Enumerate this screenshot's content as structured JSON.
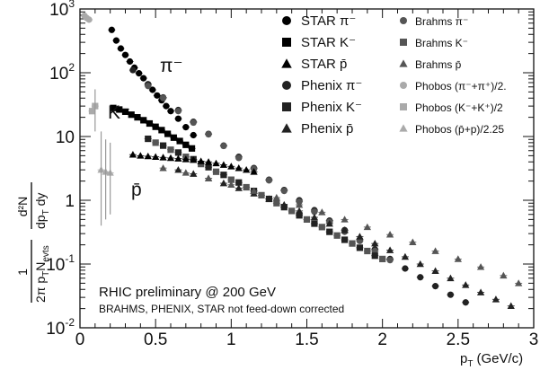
{
  "chart_data": {
    "type": "scatter",
    "xlabel_main": "p",
    "xlabel_sub": "T",
    "xlabel_unit": "(GeV/c)",
    "xlim": [
      0,
      3
    ],
    "ylim": [
      0.01,
      1000
    ],
    "yscale": "log",
    "ylabel_parts": {
      "frac1_num": "1",
      "frac1_den_a": "2π p",
      "frac1_den_sub_a": "T",
      "frac1_den_b": "N",
      "frac1_den_sub_b": "evts",
      "frac2_num": "d²N",
      "frac2_den_a": "dp",
      "frac2_den_sub_a": "T",
      "frac2_den_b": " dy"
    },
    "x_ticks": [
      "0",
      "0.5",
      "1",
      "1.5",
      "2",
      "2.5",
      "3"
    ],
    "x_tick_values": [
      0,
      0.5,
      1,
      1.5,
      2,
      2.5,
      3
    ],
    "y_ticks": [
      {
        "value": 1000,
        "base": "10",
        "exp": "3"
      },
      {
        "value": 100,
        "base": "10",
        "exp": "2"
      },
      {
        "value": 10,
        "base": "10",
        "exp": ""
      },
      {
        "value": 1,
        "base": "1",
        "exp": ""
      },
      {
        "value": 0.1,
        "base": "10",
        "exp": "-1"
      },
      {
        "value": 0.01,
        "base": "10",
        "exp": "-2"
      }
    ],
    "annotations": {
      "pi_label": "π⁻",
      "k_label": "K⁻",
      "pbar_label": "p̄",
      "line1": "RHIC preliminary @ 200 GeV",
      "line2": "BRAHMS, PHENIX, STAR not feed-down corrected"
    },
    "legend": [
      {
        "label": "STAR π⁻",
        "color": "#000000",
        "marker": "circle",
        "size": "large"
      },
      {
        "label": "STAR K⁻",
        "color": "#000000",
        "marker": "square",
        "size": "large"
      },
      {
        "label": "STAR p̄",
        "color": "#000000",
        "marker": "triangle",
        "size": "large"
      },
      {
        "label": "Phenix π⁻",
        "color": "#222222",
        "marker": "circle",
        "size": "large"
      },
      {
        "label": "Phenix K⁻",
        "color": "#222222",
        "marker": "square",
        "size": "large"
      },
      {
        "label": "Phenix p̄",
        "color": "#222222",
        "marker": "triangle",
        "size": "large"
      },
      {
        "label": "Brahms π⁻",
        "color": "#555555",
        "marker": "circle",
        "size": "small"
      },
      {
        "label": "Brahms K⁻",
        "color": "#555555",
        "marker": "square",
        "size": "small"
      },
      {
        "label": "Brahms p̄",
        "color": "#555555",
        "marker": "triangle",
        "size": "small"
      },
      {
        "label": "Phobos (π⁻+π⁺)/2.",
        "color": "#aaaaaa",
        "marker": "circle",
        "size": "small"
      },
      {
        "label": "Phobos (K⁻+K⁺)/2",
        "color": "#aaaaaa",
        "marker": "square",
        "size": "small"
      },
      {
        "label": "Phobos (p̄+p)/2.25",
        "color": "#aaaaaa",
        "marker": "triangle",
        "size": "small"
      }
    ],
    "series": [
      {
        "name": "STAR π⁻",
        "color": "#000000",
        "marker": "circle",
        "x": [
          0.21,
          0.24,
          0.27,
          0.3,
          0.33,
          0.36,
          0.39,
          0.42,
          0.45,
          0.48,
          0.51,
          0.54,
          0.57,
          0.6,
          0.65,
          0.7,
          0.75
        ],
        "y": [
          470,
          320,
          240,
          190,
          150,
          120,
          98,
          82,
          66,
          54,
          44,
          37,
          30,
          25,
          19,
          14,
          10.5
        ]
      },
      {
        "name": "Phenix π⁻",
        "color": "#222222",
        "marker": "circle",
        "x": [
          0.35,
          0.45,
          0.55,
          0.65,
          0.75,
          0.85,
          0.95,
          1.05,
          1.15,
          1.25,
          1.35,
          1.45,
          1.55,
          1.65,
          1.75,
          1.85,
          1.95,
          2.05,
          2.15,
          2.25,
          2.35,
          2.45,
          2.55
        ],
        "y": [
          110,
          66,
          41,
          26,
          17,
          11,
          7.2,
          4.8,
          3.2,
          2.1,
          1.45,
          1.0,
          0.7,
          0.48,
          0.34,
          0.24,
          0.17,
          0.12,
          0.085,
          0.062,
          0.045,
          0.033,
          0.025
        ]
      },
      {
        "name": "Brahms π⁻",
        "color": "#555555",
        "marker": "circle",
        "x": [
          0.45,
          0.55,
          0.65,
          0.75,
          0.85,
          0.95,
          1.05,
          1.15,
          1.25,
          1.35,
          1.45,
          1.55,
          1.65,
          1.75,
          1.85,
          1.95,
          2.05
        ],
        "y": [
          62,
          40,
          25,
          16.5,
          10.8,
          7.1,
          4.6,
          3.1,
          2.05,
          1.4,
          0.95,
          0.66,
          0.46,
          0.32,
          0.23,
          0.16,
          0.115
        ]
      },
      {
        "name": "STAR K⁻",
        "color": "#000000",
        "marker": "square",
        "x": [
          0.22,
          0.26,
          0.3,
          0.34,
          0.38,
          0.42,
          0.46,
          0.5,
          0.54,
          0.58,
          0.62,
          0.66,
          0.7,
          0.74
        ],
        "y": [
          28,
          26.5,
          24.5,
          22,
          20,
          18,
          16,
          14.2,
          12.6,
          11,
          9.6,
          8.5,
          7.4,
          6.5
        ]
      },
      {
        "name": "Phenix K⁻",
        "color": "#222222",
        "marker": "square",
        "x": [
          0.45,
          0.55,
          0.65,
          0.75,
          0.85,
          0.95,
          1.05,
          1.15,
          1.25,
          1.35,
          1.45,
          1.55,
          1.65,
          1.75,
          1.85,
          1.95
        ],
        "y": [
          9.2,
          7.2,
          5.6,
          4.4,
          3.3,
          2.5,
          1.9,
          1.4,
          1.05,
          0.78,
          0.58,
          0.43,
          0.32,
          0.24,
          0.18,
          0.135
        ]
      },
      {
        "name": "Brahms K⁻",
        "color": "#555555",
        "marker": "square",
        "x": [
          0.5,
          0.6,
          0.7,
          0.8,
          0.9,
          1.0,
          1.1,
          1.2,
          1.3,
          1.4,
          1.5,
          1.6,
          1.7,
          1.8,
          1.9,
          2.0
        ],
        "y": [
          8.0,
          6.2,
          4.8,
          3.7,
          2.8,
          2.1,
          1.6,
          1.2,
          0.9,
          0.68,
          0.5,
          0.38,
          0.28,
          0.21,
          0.16,
          0.12
        ]
      },
      {
        "name": "STAR p̄",
        "color": "#000000",
        "marker": "triangle",
        "x": [
          0.35,
          0.4,
          0.45,
          0.5,
          0.55,
          0.6,
          0.65,
          0.7,
          0.75,
          0.8,
          0.85,
          0.9,
          0.95,
          1.0,
          1.05,
          1.1,
          1.15
        ],
        "y": [
          5.2,
          5.0,
          4.9,
          4.8,
          4.7,
          4.6,
          4.5,
          4.4,
          4.3,
          4.1,
          4.0,
          3.8,
          3.6,
          3.4,
          3.2,
          3.0,
          2.8
        ]
      },
      {
        "name": "Phenix p̄",
        "color": "#222222",
        "marker": "triangle",
        "x": [
          0.65,
          0.75,
          0.85,
          0.95,
          1.05,
          1.15,
          1.25,
          1.35,
          1.45,
          1.55,
          1.65,
          1.75,
          1.85,
          1.95,
          2.05,
          2.15,
          2.25,
          2.35,
          2.45,
          2.55,
          2.65,
          2.75,
          2.85
        ],
        "y": [
          3.0,
          2.6,
          2.2,
          1.85,
          1.55,
          1.28,
          1.05,
          0.85,
          0.68,
          0.54,
          0.43,
          0.34,
          0.27,
          0.21,
          0.165,
          0.13,
          0.1,
          0.078,
          0.06,
          0.047,
          0.036,
          0.028,
          0.022
        ]
      },
      {
        "name": "Brahms p̄",
        "color": "#555555",
        "marker": "triangle",
        "x": [
          0.55,
          0.7,
          0.85,
          1.0,
          1.15,
          1.3,
          1.45,
          1.6,
          1.75,
          1.9,
          2.05,
          2.2,
          2.35,
          2.5,
          2.65,
          2.8,
          2.9
        ],
        "y": [
          3.2,
          2.7,
          2.2,
          1.75,
          1.4,
          1.1,
          0.85,
          0.65,
          0.5,
          0.38,
          0.29,
          0.22,
          0.16,
          0.12,
          0.09,
          0.066,
          0.05
        ]
      },
      {
        "name": "Phobos (π⁻+π⁺)/2.",
        "color": "#aaaaaa",
        "marker": "circle",
        "x": [
          0.03,
          0.045,
          0.06
        ],
        "y": [
          780,
          720,
          680
        ]
      },
      {
        "name": "Phobos (K⁻+K⁺)/2",
        "color": "#aaaaaa",
        "marker": "square",
        "x": [
          0.08,
          0.1
        ],
        "y": [
          25,
          30
        ]
      },
      {
        "name": "Phobos (p̄+p)/2.25",
        "color": "#aaaaaa",
        "marker": "triangle",
        "x": [
          0.14,
          0.17,
          0.2
        ],
        "y": [
          3.0,
          2.8,
          2.7
        ]
      }
    ]
  }
}
